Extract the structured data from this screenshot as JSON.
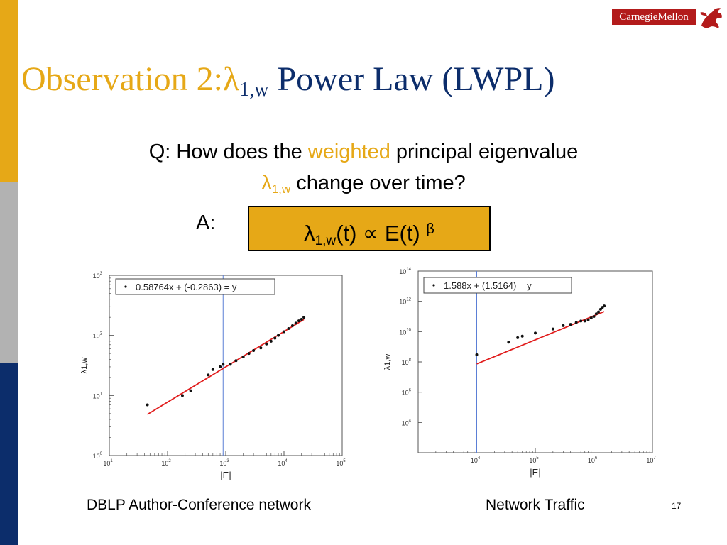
{
  "logo": {
    "text": "CarnegieMellon"
  },
  "title": {
    "prefix": "Observation 2:",
    "lambda": "λ",
    "sub": "1,w",
    "suffix": " Power Law (LWPL)"
  },
  "question": {
    "line1_a": "Q: How does the ",
    "line1_highlight": "weighted",
    "line1_b": " principal eigenvalue",
    "lambda": "λ",
    "sub": "1,w",
    "line2": " change over time?"
  },
  "answer": {
    "label": "A:",
    "lambda": "λ",
    "sub": "1,w",
    "mid": "(t) ∝ E(t) ",
    "sup": "β"
  },
  "colors": {
    "orange": "#e6a817",
    "navy": "#0c2d6b",
    "gray": "#b2b2b2",
    "logo_red": "#b31b1b",
    "fit_line": "#e11d1d",
    "vline": "#5b7fd6"
  },
  "chart_data": [
    {
      "type": "scatter",
      "scale": "log",
      "xlabel": "|E|",
      "ylabel": "λ1,w",
      "xlim": [
        10.0,
        100000.0
      ],
      "ylim": [
        1.0,
        1000.0
      ],
      "xticks": [
        {
          "b": "10",
          "e": "1"
        },
        {
          "b": "10",
          "e": "2"
        },
        {
          "b": "10",
          "e": "3"
        },
        {
          "b": "10",
          "e": "4"
        },
        {
          "b": "10",
          "e": "5"
        }
      ],
      "yticks": [
        {
          "b": "10",
          "e": "0"
        },
        {
          "b": "10",
          "e": "1"
        },
        {
          "b": "10",
          "e": "2"
        },
        {
          "b": "10",
          "e": "3"
        }
      ],
      "legend": "0.58764x + (-0.2863) = y",
      "fit": {
        "slope": 0.58764,
        "intercept": -0.2863,
        "x_range": [
          45,
          22000
        ]
      },
      "vline_x": 900,
      "caption": "DBLP Author-Conference network",
      "points": [
        [
          45,
          7
        ],
        [
          180,
          10
        ],
        [
          250,
          12
        ],
        [
          500,
          22
        ],
        [
          600,
          27
        ],
        [
          800,
          30
        ],
        [
          900,
          33
        ],
        [
          1200,
          33
        ],
        [
          1500,
          38
        ],
        [
          2000,
          44
        ],
        [
          2500,
          50
        ],
        [
          3000,
          56
        ],
        [
          4000,
          62
        ],
        [
          5000,
          72
        ],
        [
          6000,
          80
        ],
        [
          7000,
          90
        ],
        [
          8000,
          100
        ],
        [
          10000,
          115
        ],
        [
          12000,
          130
        ],
        [
          14000,
          145
        ],
        [
          16000,
          160
        ],
        [
          18000,
          175
        ],
        [
          20000,
          185
        ],
        [
          22000,
          200
        ]
      ]
    },
    {
      "type": "scatter",
      "scale": "log",
      "xlabel": "|E|",
      "ylabel": "λ1,w",
      "xlim": [
        1000.0,
        10000000.0
      ],
      "ylim": [
        100.0,
        100000000000000.0
      ],
      "xticks": [
        {
          "b": "10",
          "e": "4"
        },
        {
          "b": "10",
          "e": "5"
        },
        {
          "b": "10",
          "e": "6"
        },
        {
          "b": "10",
          "e": "7"
        }
      ],
      "yticks": [
        {
          "b": "10",
          "e": "4"
        },
        {
          "b": "10",
          "e": "6"
        },
        {
          "b": "10",
          "e": "8"
        },
        {
          "b": "10",
          "e": "10"
        },
        {
          "b": "10",
          "e": "12"
        },
        {
          "b": "10",
          "e": "14"
        }
      ],
      "legend": "1.588x + (1.5164) = y",
      "fit": {
        "slope": 1.588,
        "intercept": 1.5164,
        "x_range": [
          10000,
          1500000
        ]
      },
      "vline_x": 10000,
      "caption": "Network Traffic",
      "points": [
        [
          10000,
          300000000.0
        ],
        [
          35000,
          2000000000.0
        ],
        [
          50000,
          4000000000.0
        ],
        [
          60000,
          5000000000.0
        ],
        [
          100000,
          8000000000.0
        ],
        [
          200000,
          15000000000.0
        ],
        [
          300000,
          25000000000.0
        ],
        [
          400000,
          30000000000.0
        ],
        [
          500000,
          40000000000.0
        ],
        [
          600000,
          50000000000.0
        ],
        [
          700000,
          50000000000.0
        ],
        [
          800000,
          60000000000.0
        ],
        [
          900000,
          80000000000.0
        ],
        [
          1000000,
          100000000000.0
        ],
        [
          1100000,
          150000000000.0
        ],
        [
          1200000,
          200000000000.0
        ],
        [
          1300000,
          300000000000.0
        ],
        [
          1400000,
          400000000000.0
        ],
        [
          1500000,
          500000000000.0
        ]
      ]
    }
  ],
  "page_number": "17"
}
